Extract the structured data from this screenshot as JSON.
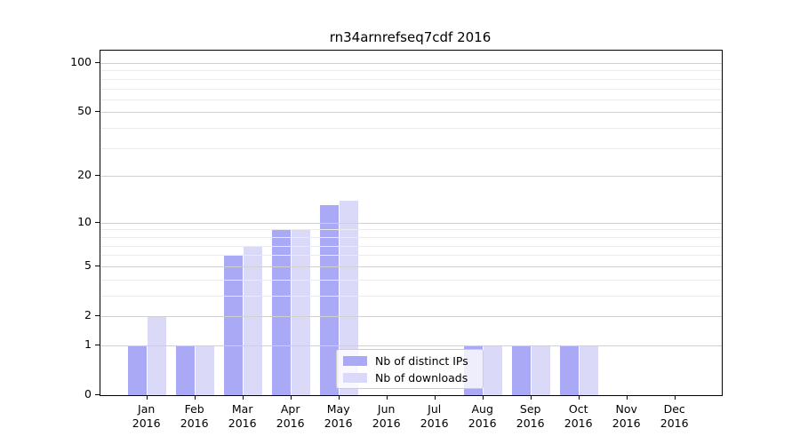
{
  "chart_data": {
    "type": "bar",
    "title": "rn34arnrefseq7cdf 2016",
    "categories": [
      "Jan",
      "Feb",
      "Mar",
      "Apr",
      "May",
      "Jun",
      "Jul",
      "Aug",
      "Sep",
      "Oct",
      "Nov",
      "Dec"
    ],
    "x_year_label": "2016",
    "series": [
      {
        "name": "Nb of distinct IPs",
        "color": "#a9a9f5",
        "values": [
          1,
          1,
          6,
          9,
          13,
          0,
          0,
          1,
          1,
          1,
          0,
          0
        ]
      },
      {
        "name": "Nb of downloads",
        "color": "#dadaf8",
        "values": [
          2,
          1,
          7,
          9,
          14,
          0,
          0,
          1,
          1,
          1,
          0,
          0
        ]
      }
    ],
    "yscale": "log1p",
    "ylim": [
      0,
      120
    ],
    "y_major_ticks": [
      0,
      1,
      2,
      5,
      10,
      20,
      50,
      100
    ],
    "y_minor_gridlines": [
      3,
      4,
      6,
      7,
      8,
      9,
      30,
      40,
      60,
      70,
      80,
      90
    ],
    "grid": "on",
    "grid_above_bars": true,
    "legend_position": "lower-center",
    "colors": {
      "major_gridline": "#d0d0d0",
      "minor_gridline": "#ebebeb",
      "axis": "#000000",
      "legend_border": "#cccccc",
      "title_text": "#000000",
      "tick_text": "#000000"
    }
  }
}
